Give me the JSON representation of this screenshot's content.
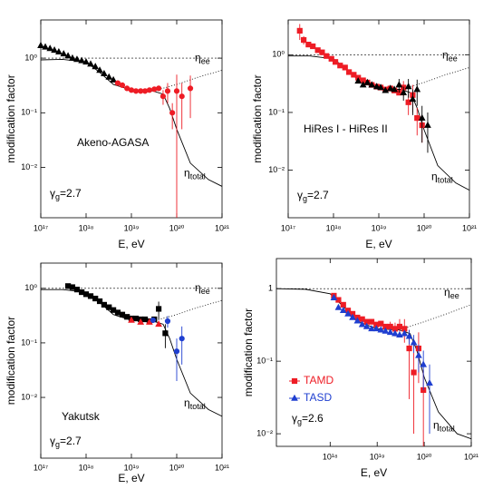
{
  "chart_data": [
    {
      "type": "scatter",
      "xlog": true,
      "ylog": true,
      "title": "Akeno-AGASA",
      "xlabel": "E, eV",
      "ylabel": "modification factor",
      "xlim": [
        1e+17,
        1e+21
      ],
      "ylim": [
        0.0012,
        5
      ],
      "xticks": [
        {
          "value": 1e+17,
          "label": "10¹⁷"
        },
        {
          "value": 1e+18,
          "label": "10¹⁸"
        },
        {
          "value": 1e+19,
          "label": "10¹⁹"
        },
        {
          "value": 1e+20,
          "label": "10²⁰"
        },
        {
          "value": 1e+21,
          "label": "10²¹"
        }
      ],
      "yticks": [
        {
          "value": 1,
          "label": "10⁰"
        },
        {
          "value": 0.1,
          "label": "10⁻¹"
        },
        {
          "value": 0.01,
          "label": "10⁻²"
        }
      ],
      "reference_line": 1,
      "gamma": {
        "symbol": "γ",
        "sub": "g",
        "text": "=2.7"
      },
      "curves": [
        {
          "symbol": "η",
          "sub": "total",
          "style": "solid",
          "x": [
            1e+17,
            3e+17,
            1e+18,
            2e+18,
            4e+18,
            1e+19,
            3e+19,
            5e+19,
            7e+19,
            1e+20,
            2e+20,
            5e+20,
            1e+21
          ],
          "values": [
            0.93,
            0.95,
            0.85,
            0.55,
            0.33,
            0.26,
            0.25,
            0.22,
            0.12,
            0.05,
            0.012,
            0.006,
            0.0045
          ]
        },
        {
          "symbol": "η",
          "sub": "ee",
          "style": "dotted",
          "x": [
            3e+19,
            1e+20,
            3e+20,
            1e+21
          ],
          "values": [
            0.25,
            0.33,
            0.45,
            0.6
          ]
        }
      ],
      "series": [
        {
          "color": "#000000",
          "marker": "triangle",
          "x": [
            1e+17,
            1.26e+17,
            1.6e+17,
            2e+17,
            2.5e+17,
            3.2e+17,
            4e+17,
            5e+17,
            6.3e+17,
            8e+17,
            1e+18,
            1.26e+18,
            1.6e+18,
            2e+18,
            2.5e+18,
            3.2e+18,
            4e+18
          ],
          "values": [
            1.7,
            1.6,
            1.5,
            1.4,
            1.3,
            1.2,
            1.1,
            1.0,
            0.95,
            0.9,
            0.85,
            0.78,
            0.7,
            0.6,
            0.52,
            0.45,
            0.4
          ]
        },
        {
          "color": "#ee1c25",
          "marker": "circle",
          "x": [
            5e+18,
            6.3e+18,
            8e+18,
            1e+19,
            1.26e+19,
            1.6e+19,
            2e+19,
            2.5e+19,
            3.2e+19,
            4e+19,
            5e+19,
            6.3e+19,
            8e+19,
            1e+20,
            1.3e+20,
            2e+20
          ],
          "values": [
            0.35,
            0.32,
            0.28,
            0.26,
            0.25,
            0.25,
            0.25,
            0.26,
            0.27,
            0.28,
            0.2,
            0.25,
            0.1,
            0.25,
            0.2,
            0.28
          ],
          "errors": [
            null,
            null,
            null,
            null,
            null,
            null,
            null,
            null,
            null,
            null,
            0.06,
            0.1,
            0.05,
            0.25,
            0.15,
            0.2
          ]
        }
      ]
    },
    {
      "type": "scatter",
      "xlog": true,
      "ylog": true,
      "title": "HiRes I - HiRes II",
      "xlabel": "E, eV",
      "ylabel": "modification factor",
      "xlim": [
        1e+17,
        1e+21
      ],
      "ylim": [
        0.0015,
        4
      ],
      "xticks": [
        {
          "value": 1e+17,
          "label": "10¹⁷"
        },
        {
          "value": 1e+18,
          "label": "10¹⁸"
        },
        {
          "value": 1e+19,
          "label": "10¹⁹"
        },
        {
          "value": 1e+20,
          "label": "10²⁰"
        },
        {
          "value": 1e+21,
          "label": "10²¹"
        }
      ],
      "yticks": [
        {
          "value": 1,
          "label": "10⁰"
        },
        {
          "value": 0.1,
          "label": "10⁻¹"
        },
        {
          "value": 0.01,
          "label": "10⁻²"
        }
      ],
      "reference_line": 1,
      "gamma": {
        "symbol": "γ",
        "sub": "g",
        "text": "=2.7"
      },
      "curves": [
        {
          "symbol": "η",
          "sub": "total",
          "style": "solid",
          "x": [
            1e+17,
            3e+17,
            1e+18,
            2e+18,
            4e+18,
            1e+19,
            3e+19,
            5e+19,
            7e+19,
            1e+20,
            2e+20,
            5e+20,
            1e+21
          ],
          "values": [
            0.95,
            0.95,
            0.85,
            0.55,
            0.33,
            0.26,
            0.25,
            0.22,
            0.12,
            0.05,
            0.012,
            0.006,
            0.0045
          ]
        },
        {
          "symbol": "η",
          "sub": "ee",
          "style": "dotted",
          "x": [
            3e+19,
            1e+20,
            3e+20,
            1e+21
          ],
          "values": [
            0.25,
            0.33,
            0.45,
            0.6
          ]
        }
      ],
      "series": [
        {
          "color": "#ee1c25",
          "marker": "square",
          "x": [
            1.8e+17,
            2.2e+17,
            2.8e+17,
            3.5e+17,
            4.5e+17,
            5.6e+17,
            7e+17,
            9e+17,
            1.1e+18,
            1.4e+18,
            1.8e+18,
            2.2e+18,
            2.8e+18,
            3.5e+18,
            4.5e+18,
            5.6e+18,
            7e+18,
            9e+18,
            1.1e+19,
            1.4e+19,
            1.8e+19,
            2.2e+19,
            2.8e+19,
            3.5e+19,
            4.5e+19,
            5.6e+19,
            7e+19,
            9e+19
          ],
          "values": [
            2.6,
            1.8,
            1.5,
            1.4,
            1.2,
            1.1,
            0.95,
            0.85,
            0.75,
            0.65,
            0.6,
            0.5,
            0.45,
            0.4,
            0.36,
            0.33,
            0.3,
            0.28,
            0.27,
            0.25,
            0.26,
            0.24,
            0.22,
            0.27,
            0.15,
            0.2,
            0.08,
            0.06
          ],
          "errors": [
            0.8,
            0.3,
            null,
            null,
            null,
            null,
            null,
            null,
            null,
            null,
            null,
            null,
            null,
            null,
            null,
            null,
            null,
            null,
            null,
            null,
            null,
            null,
            null,
            0.08,
            0.06,
            0.1,
            0.04,
            0.03
          ]
        },
        {
          "color": "#000000",
          "marker": "triangle",
          "x": [
            3.5e+18,
            4.5e+18,
            5.6e+18,
            7e+18,
            9e+18,
            1.1e+19,
            1.4e+19,
            1.8e+19,
            2.2e+19,
            2.8e+19,
            3.5e+19,
            4.5e+19,
            5.6e+19,
            7e+19,
            9e+19,
            1.2e+20
          ],
          "values": [
            0.35,
            0.3,
            0.33,
            0.3,
            0.28,
            0.27,
            0.24,
            0.26,
            0.25,
            0.3,
            0.22,
            0.28,
            0.17,
            0.25,
            0.08,
            0.06
          ],
          "errors": [
            null,
            null,
            null,
            null,
            null,
            null,
            null,
            null,
            null,
            0.08,
            0.06,
            0.1,
            0.08,
            0.12,
            0.05,
            0.04
          ]
        }
      ]
    },
    {
      "type": "scatter",
      "xlog": true,
      "ylog": true,
      "title": "Yakutsk",
      "xlabel": "E, eV",
      "ylabel": "modification factor",
      "xlim": [
        1e+17,
        1e+21
      ],
      "ylim": [
        0.00077,
        2.9
      ],
      "xticks": [
        {
          "value": 1e+17,
          "label": "10¹⁷"
        },
        {
          "value": 1e+18,
          "label": "10¹⁸"
        },
        {
          "value": 1e+19,
          "label": "10¹⁹"
        },
        {
          "value": 1e+20,
          "label": "10²⁰"
        },
        {
          "value": 1e+21,
          "label": "10²¹"
        }
      ],
      "yticks": [
        {
          "value": 1,
          "label": "10⁰"
        },
        {
          "value": 0.1,
          "label": "10⁻¹"
        },
        {
          "value": 0.01,
          "label": "10⁻²"
        }
      ],
      "reference_line": 1,
      "gamma": {
        "symbol": "γ",
        "sub": "g",
        "text": "=2.7"
      },
      "curves": [
        {
          "symbol": "η",
          "sub": "total",
          "style": "solid",
          "x": [
            1e+17,
            3e+17,
            1e+18,
            2e+18,
            4e+18,
            1e+19,
            3e+19,
            5e+19,
            7e+19,
            1e+20,
            2e+20,
            5e+20,
            1e+21
          ],
          "values": [
            0.95,
            0.95,
            0.85,
            0.55,
            0.33,
            0.26,
            0.25,
            0.22,
            0.12,
            0.05,
            0.012,
            0.006,
            0.0045
          ]
        },
        {
          "symbol": "η",
          "sub": "ee",
          "style": "dotted",
          "x": [
            3e+19,
            1e+20,
            3e+20,
            1e+21
          ],
          "values": [
            0.25,
            0.33,
            0.45,
            0.6
          ]
        }
      ],
      "series": [
        {
          "color": "#000000",
          "marker": "square",
          "x": [
            4e+17,
            5e+17,
            6.3e+17,
            8e+17,
            1e+18,
            1.26e+18,
            1.6e+18,
            2e+18,
            2.5e+18,
            3.2e+18,
            4e+18,
            5e+18,
            6.3e+18,
            8e+18,
            1e+19,
            1.26e+19,
            1.6e+19,
            2e+19,
            2.5e+19,
            3.2e+19,
            4e+19,
            5.6e+19
          ],
          "values": [
            1.1,
            1.05,
            0.95,
            0.85,
            0.78,
            0.72,
            0.65,
            0.58,
            0.5,
            0.45,
            0.4,
            0.36,
            0.33,
            0.3,
            0.28,
            0.28,
            0.27,
            0.27,
            0.25,
            0.27,
            0.42,
            0.15
          ],
          "errors": [
            null,
            null,
            null,
            null,
            null,
            null,
            null,
            null,
            null,
            null,
            null,
            null,
            null,
            null,
            null,
            null,
            null,
            null,
            null,
            null,
            0.15,
            0.07
          ]
        },
        {
          "color": "#ee1c25",
          "marker": "triangle",
          "x": [
            1e+19,
            1.6e+19,
            2.5e+19,
            4e+19
          ],
          "values": [
            0.26,
            0.24,
            0.24,
            0.22
          ]
        },
        {
          "color": "#1f3fd0",
          "marker": "circle",
          "x": [
            3e+19,
            6.3e+19,
            1e+20,
            1.3e+20
          ],
          "values": [
            0.26,
            0.25,
            0.07,
            0.12
          ],
          "errors": [
            null,
            0.06,
            0.05,
            0.08
          ]
        }
      ]
    },
    {
      "type": "scatter",
      "xlog": true,
      "ylog": true,
      "xlabel": "E, eV",
      "ylabel": "modification factor",
      "xlim": [
        7.2e+16,
        1e+21
      ],
      "ylim": [
        0.0067,
        2.6
      ],
      "xticks": [
        {
          "value": 1e+18,
          "label": "10¹⁸"
        },
        {
          "value": 1e+19,
          "label": "10¹⁹"
        },
        {
          "value": 1e+20,
          "label": "10²⁰"
        },
        {
          "value": 1e+21,
          "label": "10²¹"
        }
      ],
      "yticks": [
        1,
        {
          "value": 0.1,
          "label": "10⁻¹"
        },
        {
          "value": 0.01,
          "label": "10⁻²"
        }
      ],
      "reference_line": 1,
      "legend": "left",
      "gamma": {
        "symbol": "γ",
        "sub": "g",
        "text": "=2.6"
      },
      "curves": [
        {
          "symbol": "η",
          "sub": "total",
          "style": "solid",
          "x": [
            7.2e+16,
            3e+17,
            1e+18,
            2e+18,
            4e+18,
            1e+19,
            3e+19,
            5e+19,
            7e+19,
            1e+20,
            2e+20,
            5e+20,
            1e+21
          ],
          "values": [
            1,
            0.98,
            0.85,
            0.55,
            0.35,
            0.28,
            0.27,
            0.24,
            0.14,
            0.06,
            0.02,
            0.01,
            0.0085
          ]
        },
        {
          "symbol": "η",
          "sub": "ee",
          "style": "dotted",
          "x": [
            3e+19,
            1e+20,
            3e+20,
            1e+21
          ],
          "values": [
            0.27,
            0.35,
            0.45,
            0.6
          ]
        }
      ],
      "series": [
        {
          "name": "TAMD",
          "color": "#ee1c25",
          "marker": "square",
          "x": [
            1.2e+18,
            1.5e+18,
            1.9e+18,
            2.4e+18,
            3e+18,
            3.8e+18,
            4.8e+18,
            6e+18,
            7.6e+18,
            9.6e+18,
            1.2e+19,
            1.5e+19,
            1.9e+19,
            2.4e+19,
            3e+19,
            3.8e+19,
            4.8e+19,
            6e+19,
            7.6e+19,
            9.6e+19
          ],
          "values": [
            0.8,
            0.7,
            0.6,
            0.5,
            0.45,
            0.4,
            0.38,
            0.35,
            0.35,
            0.32,
            0.33,
            0.3,
            0.3,
            0.28,
            0.3,
            0.28,
            0.15,
            0.07,
            0.15,
            0.04
          ],
          "errors": [
            null,
            null,
            null,
            null,
            null,
            null,
            null,
            null,
            null,
            null,
            null,
            null,
            0.05,
            0.06,
            0.08,
            0.1,
            0.12,
            0.06,
            0.1,
            0.035
          ]
        },
        {
          "name": "TASD",
          "color": "#1f3fd0",
          "marker": "triangle",
          "x": [
            1.2e+18,
            1.5e+18,
            1.9e+18,
            2.4e+18,
            3e+18,
            3.8e+18,
            4.8e+18,
            6e+18,
            7.6e+18,
            9.6e+18,
            1.2e+19,
            1.5e+19,
            1.9e+19,
            2.4e+19,
            3e+19,
            3.8e+19,
            4.8e+19,
            6e+19,
            7.6e+19,
            9.6e+19,
            1.3e+20
          ],
          "values": [
            0.75,
            0.55,
            0.5,
            0.45,
            0.4,
            0.36,
            0.32,
            0.3,
            0.28,
            0.28,
            0.27,
            0.26,
            0.25,
            0.24,
            0.23,
            0.24,
            0.22,
            0.18,
            0.12,
            0.09,
            0.05
          ],
          "errors": [
            null,
            null,
            null,
            null,
            null,
            null,
            null,
            null,
            null,
            null,
            null,
            null,
            null,
            null,
            null,
            null,
            0.05,
            0.05,
            0.05,
            0.05,
            0.04
          ]
        }
      ]
    }
  ]
}
